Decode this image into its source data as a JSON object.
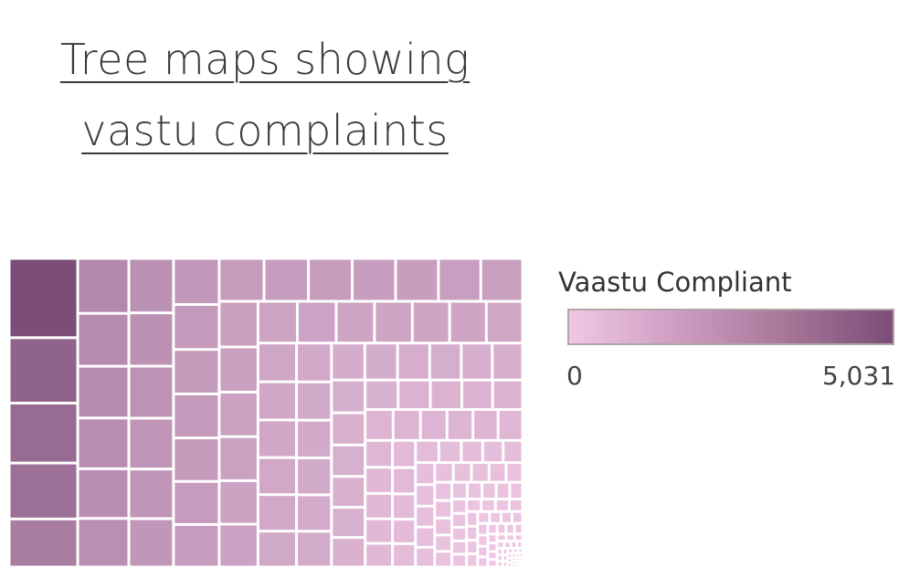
{
  "title": "Tree maps showing vastu complaints",
  "chart_data": {
    "type": "treemap",
    "title": "Tree maps showing vastu complaints",
    "legend": {
      "title": "Vaastu Compliant",
      "min_label": "0",
      "max_label": "5,031",
      "min": 0,
      "max": 5031,
      "colors": [
        "#efc8e4",
        "#7b4d77"
      ],
      "placement": "right"
    },
    "values": [
      5031,
      4150,
      3800,
      3550,
      3050,
      2600,
      2500,
      2450,
      2400,
      2350,
      2300,
      2250,
      2200,
      2150,
      2100,
      2050,
      2000,
      1950,
      1900,
      1880,
      1860,
      1840,
      1820,
      1800,
      1780,
      1760,
      1740,
      1720,
      1700,
      1680,
      1660,
      1640,
      1620,
      1600,
      1580,
      1560,
      1540,
      1520,
      1500,
      1480,
      1460,
      1440,
      1420,
      1400,
      1380,
      1360,
      1340,
      1320,
      1300,
      1280,
      1260,
      1240,
      1220,
      1200,
      1180,
      1160,
      1140,
      1120,
      1100,
      1080,
      1060,
      1040,
      1020,
      1000,
      980,
      960,
      940,
      920,
      900,
      880,
      860,
      840,
      820,
      800,
      780,
      760,
      740,
      720,
      700,
      680,
      660,
      640,
      620,
      600,
      580,
      560,
      540,
      520,
      500,
      480,
      460,
      440,
      420,
      400,
      390,
      380,
      370,
      360,
      350,
      340,
      330,
      320,
      310,
      300,
      290,
      280,
      270,
      260,
      250,
      240,
      230,
      220,
      210,
      200,
      195,
      190,
      185,
      180,
      175,
      170,
      165,
      160,
      155,
      150,
      145,
      140,
      135,
      130,
      125,
      120,
      115,
      110,
      105,
      100,
      96,
      92,
      88,
      84,
      80,
      76,
      72,
      68,
      64,
      60,
      56,
      52,
      48,
      44,
      40,
      38,
      36,
      34,
      32,
      30,
      28,
      26,
      24,
      22,
      20,
      19,
      18,
      17,
      16,
      15,
      14,
      13,
      12,
      11,
      10,
      9,
      8,
      7,
      6,
      5,
      4,
      3,
      2,
      2,
      1,
      1
    ]
  }
}
